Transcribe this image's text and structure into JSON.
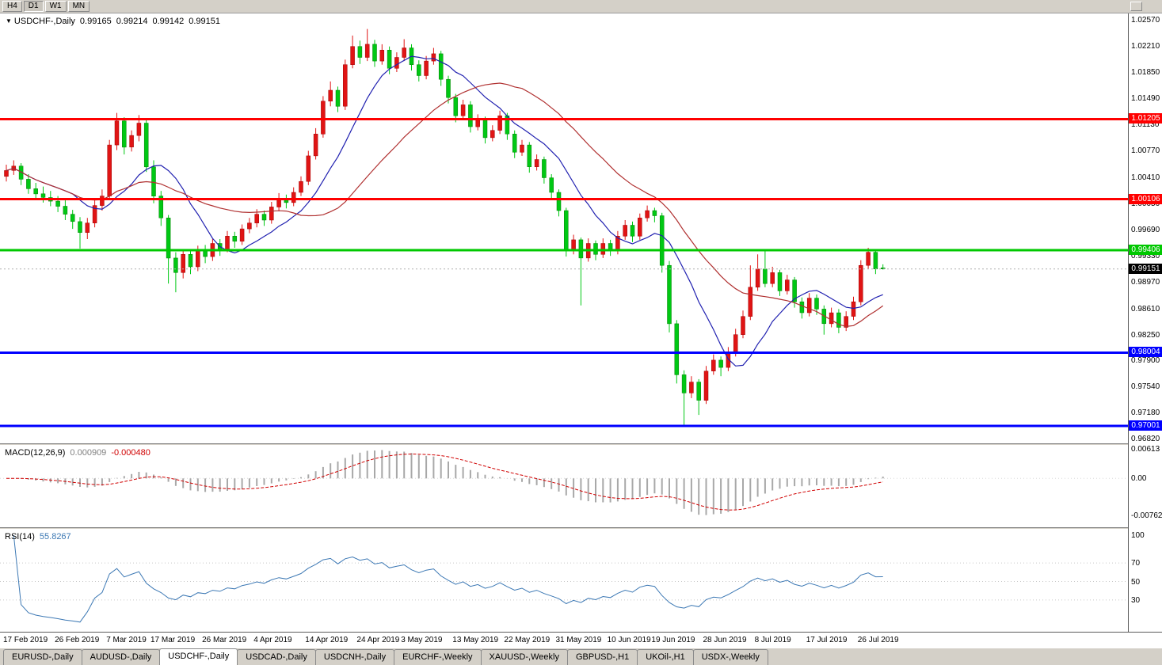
{
  "toolbar": {
    "timeframes": [
      {
        "label": "H4",
        "active": false
      },
      {
        "label": "D1",
        "active": true
      },
      {
        "label": "W1",
        "active": false
      },
      {
        "label": "MN",
        "active": false
      }
    ]
  },
  "chart_header": {
    "dropdown_icon": "▼",
    "symbol": "USDCHF-,Daily",
    "open": "0.99165",
    "high": "0.99214",
    "low": "0.99142",
    "close": "0.99151"
  },
  "price_axis": {
    "ticks": [
      "1.02570",
      "1.02210",
      "1.01850",
      "1.01490",
      "1.01130",
      "1.00770",
      "1.00410",
      "1.00050",
      "0.99690",
      "0.99330",
      "0.98970",
      "0.98610",
      "0.98250",
      "0.97900",
      "0.97540",
      "0.97180",
      "0.96820"
    ]
  },
  "levels": [
    {
      "value": 1.01205,
      "label": "1.01205",
      "color": "#ff0000",
      "thickness": 3
    },
    {
      "value": 1.00106,
      "label": "1.00106",
      "color": "#ff0000",
      "thickness": 3
    },
    {
      "value": 0.99406,
      "label": "0.99406",
      "color": "#00c800",
      "thickness": 3
    },
    {
      "value": 0.98004,
      "label": "0.98004",
      "color": "#0000ff",
      "thickness": 3
    },
    {
      "value": 0.97001,
      "label": "0.97001",
      "color": "#0000ff",
      "thickness": 3
    }
  ],
  "current_price": {
    "value": 0.99151,
    "label": "0.99151",
    "badge_color": "#000000",
    "line_color": "#b0b0b0"
  },
  "macd": {
    "label": "MACD(12,26,9)",
    "value_main": "0.000909",
    "value_signal": "-0.000480",
    "axis_ticks": [
      "0.00613",
      "0.00",
      "-0.00762"
    ],
    "histogram_color": "#a8a8a8",
    "signal_color": "#d00000"
  },
  "rsi": {
    "label": "RSI(14)",
    "value": "55.8267",
    "axis_ticks": [
      "100",
      "70",
      "50",
      "30"
    ],
    "levels": [
      70,
      50,
      30
    ],
    "line_color": "#3c78b4"
  },
  "date_axis": {
    "labels": [
      {
        "text": "17 Feb 2019",
        "index": 0
      },
      {
        "text": "26 Feb 2019",
        "index": 7
      },
      {
        "text": "7 Mar 2019",
        "index": 14
      },
      {
        "text": "17 Mar 2019",
        "index": 20
      },
      {
        "text": "26 Mar 2019",
        "index": 27
      },
      {
        "text": "4 Apr 2019",
        "index": 34
      },
      {
        "text": "14 Apr 2019",
        "index": 41
      },
      {
        "text": "24 Apr 2019",
        "index": 48
      },
      {
        "text": "3 May 2019",
        "index": 54
      },
      {
        "text": "13 May 2019",
        "index": 61
      },
      {
        "text": "22 May 2019",
        "index": 68
      },
      {
        "text": "31 May 2019",
        "index": 75
      },
      {
        "text": "10 Jun 2019",
        "index": 82
      },
      {
        "text": "19 Jun 2019",
        "index": 88
      },
      {
        "text": "28 Jun 2019",
        "index": 95
      },
      {
        "text": "8 Jul 2019",
        "index": 102
      },
      {
        "text": "17 Jul 2019",
        "index": 109
      },
      {
        "text": "26 Jul 2019",
        "index": 116
      }
    ]
  },
  "tabs": [
    {
      "label": "EURUSD-,Daily",
      "active": false
    },
    {
      "label": "AUDUSD-,Daily",
      "active": false
    },
    {
      "label": "USDCHF-,Daily",
      "active": true
    },
    {
      "label": "USDCAD-,Daily",
      "active": false
    },
    {
      "label": "USDCNH-,Daily",
      "active": false
    },
    {
      "label": "EURCHF-,Weekly",
      "active": false
    },
    {
      "label": "XAUUSD-,Weekly",
      "active": false
    },
    {
      "label": "GBPUSD-,H1",
      "active": false
    },
    {
      "label": "UKOil-,H1",
      "active": false
    },
    {
      "label": "USDX-,Weekly",
      "active": false
    }
  ],
  "chart_data": {
    "type": "candlestick",
    "title": "USDCHF-,Daily",
    "symbol": "USDCHF-",
    "timeframe": "Daily",
    "price_range": [
      0.9676,
      1.0262
    ],
    "up_color": "#e01414",
    "down_color": "#00c814",
    "ma_fast": {
      "period": 10,
      "color": "#2020b0"
    },
    "ma_slow": {
      "period": 25,
      "color": "#b03030"
    },
    "candles": [
      [
        1.0042,
        1.0058,
        1.0035,
        1.005
      ],
      [
        1.005,
        1.0064,
        1.0044,
        1.0056
      ],
      [
        1.0056,
        1.006,
        1.003,
        1.0038
      ],
      [
        1.0038,
        1.0045,
        1.0018,
        1.0025
      ],
      [
        1.0025,
        1.0033,
        1.001,
        1.0018
      ],
      [
        1.0018,
        1.0028,
        1.0006,
        1.0013
      ],
      [
        1.0013,
        1.0022,
        1.0001,
        1.0008
      ],
      [
        1.0008,
        1.0015,
        0.9993,
        1.0001
      ],
      [
        1.0001,
        1.0009,
        0.9982,
        0.999
      ],
      [
        0.999,
        0.9996,
        0.997,
        0.998
      ],
      [
        0.998,
        0.9986,
        0.9943,
        0.9965
      ],
      [
        0.9965,
        0.9985,
        0.9956,
        0.9978
      ],
      [
        0.9978,
        1.0009,
        0.9972,
        1.0002
      ],
      [
        1.0002,
        1.0024,
        0.9995,
        1.0015
      ],
      [
        1.0015,
        1.0092,
        1.001,
        1.0085
      ],
      [
        1.0085,
        1.0129,
        1.0078,
        1.0118
      ],
      [
        1.0118,
        1.0123,
        1.0072,
        1.0082
      ],
      [
        1.0082,
        1.0105,
        1.0076,
        1.0098
      ],
      [
        1.0098,
        1.0126,
        1.009,
        1.0115
      ],
      [
        1.0115,
        1.0119,
        1.0048,
        1.0055
      ],
      [
        1.0055,
        1.0064,
        1.0005,
        1.0015
      ],
      [
        1.0015,
        1.0022,
        0.9974,
        0.9985
      ],
      [
        0.9985,
        0.9989,
        0.9895,
        0.993
      ],
      [
        0.993,
        0.9938,
        0.9883,
        0.991
      ],
      [
        0.991,
        0.9942,
        0.9902,
        0.9935
      ],
      [
        0.9935,
        0.994,
        0.9908,
        0.9918
      ],
      [
        0.9918,
        0.9947,
        0.9912,
        0.994
      ],
      [
        0.994,
        0.9948,
        0.9923,
        0.9932
      ],
      [
        0.9932,
        0.9956,
        0.9926,
        0.995
      ],
      [
        0.995,
        0.9956,
        0.9933,
        0.9942
      ],
      [
        0.9942,
        0.9967,
        0.9938,
        0.996
      ],
      [
        0.996,
        0.9966,
        0.9944,
        0.9953
      ],
      [
        0.9953,
        0.9976,
        0.9948,
        0.997
      ],
      [
        0.997,
        0.9985,
        0.9964,
        0.9978
      ],
      [
        0.9978,
        0.9997,
        0.9972,
        0.999
      ],
      [
        0.999,
        0.9995,
        0.9974,
        0.9982
      ],
      [
        0.9982,
        1.0007,
        0.9977,
        1.0
      ],
      [
        1.0,
        1.0019,
        0.9994,
        1.0012
      ],
      [
        1.0012,
        1.0017,
        0.9998,
        1.0006
      ],
      [
        1.0006,
        1.0027,
        1.0001,
        1.002
      ],
      [
        1.002,
        1.0042,
        1.0015,
        1.0035
      ],
      [
        1.0035,
        1.0077,
        1.003,
        1.007
      ],
      [
        1.007,
        1.0108,
        1.0065,
        1.01
      ],
      [
        1.01,
        1.0152,
        1.0095,
        1.0145
      ],
      [
        1.0145,
        1.0172,
        1.0138,
        1.016
      ],
      [
        1.016,
        1.0165,
        1.013,
        1.0138
      ],
      [
        1.0138,
        1.0202,
        1.0133,
        1.0195
      ],
      [
        1.0195,
        1.0235,
        1.019,
        1.022
      ],
      [
        1.022,
        1.0228,
        1.0196,
        1.0205
      ],
      [
        1.0205,
        1.0244,
        1.02,
        1.0223
      ],
      [
        1.0223,
        1.0229,
        1.0192,
        1.02
      ],
      [
        1.02,
        1.0223,
        1.0195,
        1.0215
      ],
      [
        1.0215,
        1.022,
        1.0182,
        1.019
      ],
      [
        1.019,
        1.0212,
        1.0185,
        1.0205
      ],
      [
        1.0205,
        1.023,
        1.02,
        1.0218
      ],
      [
        1.0218,
        1.0223,
        1.0187,
        1.0195
      ],
      [
        1.0195,
        1.0201,
        1.0172,
        1.018
      ],
      [
        1.018,
        1.0207,
        1.0175,
        1.02
      ],
      [
        1.02,
        1.0218,
        1.0195,
        1.021
      ],
      [
        1.021,
        1.0214,
        1.0166,
        1.0175
      ],
      [
        1.0175,
        1.018,
        1.0142,
        1.015
      ],
      [
        1.015,
        1.0155,
        1.0116,
        1.0125
      ],
      [
        1.0125,
        1.0147,
        1.012,
        1.014
      ],
      [
        1.014,
        1.0145,
        1.0102,
        1.011
      ],
      [
        1.011,
        1.0127,
        1.0105,
        1.012
      ],
      [
        1.012,
        1.0124,
        1.0087,
        1.0095
      ],
      [
        1.0095,
        1.0112,
        1.009,
        1.0105
      ],
      [
        1.0105,
        1.0132,
        1.01,
        1.0125
      ],
      [
        1.0125,
        1.0129,
        1.0092,
        1.01
      ],
      [
        1.01,
        1.0105,
        1.0067,
        1.0075
      ],
      [
        1.0075,
        1.0092,
        1.007,
        1.0085
      ],
      [
        1.0085,
        1.0089,
        1.0047,
        1.0055
      ],
      [
        1.0055,
        1.0072,
        1.005,
        1.0065
      ],
      [
        1.0065,
        1.0069,
        1.0032,
        1.004
      ],
      [
        1.004,
        1.0045,
        1.0012,
        1.002
      ],
      [
        1.002,
        1.0024,
        0.9987,
        0.9995
      ],
      [
        0.9995,
        0.9999,
        0.9932,
        0.994
      ],
      [
        0.994,
        0.9962,
        0.9935,
        0.9955
      ],
      [
        0.9955,
        0.9958,
        0.9865,
        0.993
      ],
      [
        0.993,
        0.9957,
        0.9925,
        0.995
      ],
      [
        0.995,
        0.9954,
        0.9927,
        0.9935
      ],
      [
        0.9935,
        0.9957,
        0.993,
        0.995
      ],
      [
        0.995,
        0.9955,
        0.9933,
        0.994
      ],
      [
        0.994,
        0.9967,
        0.9935,
        0.996
      ],
      [
        0.996,
        0.9982,
        0.9955,
        0.9975
      ],
      [
        0.9975,
        0.998,
        0.9952,
        0.996
      ],
      [
        0.996,
        0.9991,
        0.9955,
        0.9985
      ],
      [
        0.9985,
        1.0002,
        0.998,
        0.9995
      ],
      [
        0.9995,
        0.9999,
        0.9979,
        0.9988
      ],
      [
        0.9988,
        0.9992,
        0.991,
        0.992
      ],
      [
        0.992,
        0.9926,
        0.9828,
        0.984
      ],
      [
        0.984,
        0.9845,
        0.9758,
        0.977
      ],
      [
        0.977,
        0.9776,
        0.9701,
        0.9745
      ],
      [
        0.9745,
        0.9768,
        0.9738,
        0.976
      ],
      [
        0.976,
        0.9764,
        0.9715,
        0.9735
      ],
      [
        0.9735,
        0.9782,
        0.973,
        0.9775
      ],
      [
        0.9775,
        0.9798,
        0.977,
        0.979
      ],
      [
        0.979,
        0.9795,
        0.9768,
        0.978
      ],
      [
        0.978,
        0.9808,
        0.9775,
        0.98
      ],
      [
        0.98,
        0.9833,
        0.9795,
        0.9825
      ],
      [
        0.9825,
        0.9858,
        0.982,
        0.985
      ],
      [
        0.985,
        0.992,
        0.9845,
        0.989
      ],
      [
        0.989,
        0.9935,
        0.9885,
        0.9915
      ],
      [
        0.9915,
        0.994,
        0.989,
        0.9895
      ],
      [
        0.9895,
        0.9918,
        0.989,
        0.991
      ],
      [
        0.991,
        0.9914,
        0.9878,
        0.9885
      ],
      [
        0.9885,
        0.9907,
        0.988,
        0.99
      ],
      [
        0.99,
        0.9904,
        0.9862,
        0.987
      ],
      [
        0.987,
        0.9876,
        0.9847,
        0.9855
      ],
      [
        0.9855,
        0.9882,
        0.985,
        0.9875
      ],
      [
        0.9875,
        0.988,
        0.9852,
        0.986
      ],
      [
        0.986,
        0.9865,
        0.9825,
        0.984
      ],
      [
        0.984,
        0.9862,
        0.9835,
        0.9855
      ],
      [
        0.9855,
        0.986,
        0.9827,
        0.9835
      ],
      [
        0.9835,
        0.9857,
        0.983,
        0.985
      ],
      [
        0.985,
        0.9877,
        0.9845,
        0.987
      ],
      [
        0.987,
        0.9927,
        0.9865,
        0.992
      ],
      [
        0.992,
        0.9944,
        0.9915,
        0.9938
      ],
      [
        0.9938,
        0.9942,
        0.9908,
        0.9915
      ],
      [
        0.99165,
        0.99214,
        0.99142,
        0.99151
      ]
    ]
  }
}
